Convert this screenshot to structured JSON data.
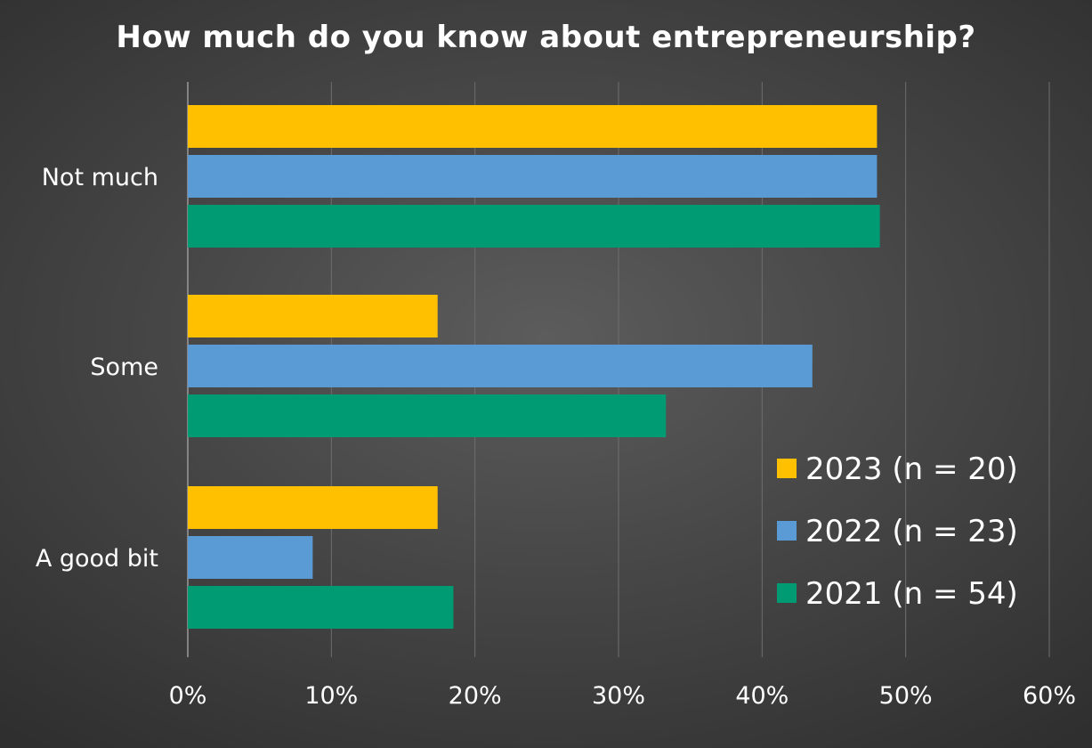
{
  "chart_data": {
    "type": "bar",
    "orientation": "horizontal",
    "title": "How much do you know about entrepreneurship?",
    "categories": [
      "Not much",
      "Some",
      "A good bit"
    ],
    "series": [
      {
        "name": "2023 (n = 20)",
        "color": "#FFC000",
        "values": [
          48,
          17.4,
          17.4
        ]
      },
      {
        "name": "2022 (n = 23)",
        "color": "#5B9BD5",
        "values": [
          48,
          43.5,
          8.7
        ]
      },
      {
        "name": "2021 (n = 54)",
        "color": "#009B72",
        "values": [
          48.2,
          33.3,
          18.5
        ]
      }
    ],
    "xlim": [
      0,
      60
    ],
    "x_ticks": [
      "0%",
      "10%",
      "20%",
      "30%",
      "40%",
      "50%",
      "60%"
    ],
    "x_tick_values": [
      0,
      10,
      20,
      30,
      40,
      50,
      60
    ],
    "grid": "vertical",
    "legend_position": "bottom-right",
    "xlabel": "",
    "ylabel": ""
  },
  "colors": {
    "background": "#474747",
    "gridline": "#6e6e6e",
    "text": "#ffffff"
  }
}
